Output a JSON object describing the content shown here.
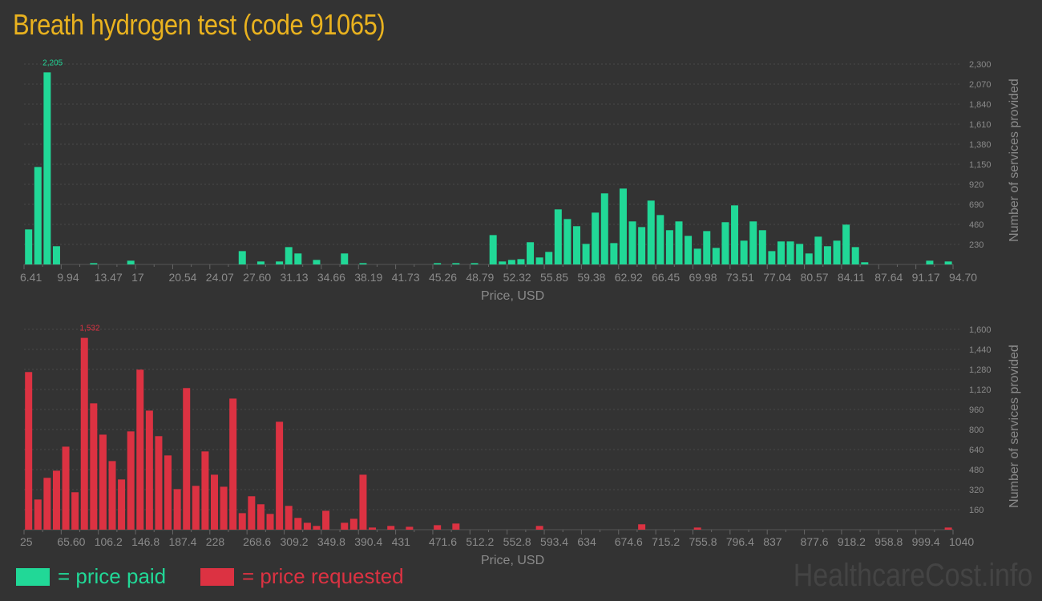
{
  "title": "Breath hydrogen test (code 91065)",
  "legend": {
    "paid_label": "= price paid",
    "requested_label": "= price requested",
    "paid_color": "#21d897",
    "requested_color": "#dc3242"
  },
  "watermark": "HealthcareCost.info",
  "chart_data": [
    {
      "type": "bar",
      "series_name": "price paid",
      "color": "#21d897",
      "xlabel": "Price, USD",
      "ylabel": "Number of services provided",
      "xlim": [
        6.41,
        94.7
      ],
      "ylim": [
        0,
        2300
      ],
      "x_ticks": [
        "6.41",
        "9.94",
        "13.47",
        "17",
        "20.54",
        "24.07",
        "27.60",
        "31.13",
        "34.66",
        "38.19",
        "41.73",
        "45.26",
        "48.79",
        "52.32",
        "55.85",
        "59.38",
        "62.92",
        "66.45",
        "69.98",
        "73.51",
        "77.04",
        "80.57",
        "84.11",
        "87.64",
        "91.17",
        "94.70"
      ],
      "y_ticks": [
        "230",
        "460",
        "690",
        "920",
        "1,150",
        "1,380",
        "1,610",
        "1,840",
        "2,070",
        "2,300"
      ],
      "bins": 100,
      "max_label": "2,205",
      "max_bin": 2,
      "values": {
        "0": 402,
        "1": 1119,
        "2": 2205,
        "3": 209,
        "7": 15,
        "11": 43,
        "23": 153,
        "25": 34,
        "27": 34,
        "28": 199,
        "29": 126,
        "31": 52,
        "34": 126,
        "36": 15,
        "44": 15,
        "46": 15,
        "48": 15,
        "50": 337,
        "51": 34,
        "52": 52,
        "53": 61,
        "54": 255,
        "55": 80,
        "56": 144,
        "57": 632,
        "58": 521,
        "59": 439,
        "60": 236,
        "61": 595,
        "62": 816,
        "63": 245,
        "64": 871,
        "65": 494,
        "66": 429,
        "67": 733,
        "68": 567,
        "69": 393,
        "70": 494,
        "71": 328,
        "72": 181,
        "73": 383,
        "74": 190,
        "75": 485,
        "76": 678,
        "77": 273,
        "78": 494,
        "79": 393,
        "80": 153,
        "81": 264,
        "82": 264,
        "83": 236,
        "84": 126,
        "85": 319,
        "86": 209,
        "87": 273,
        "88": 457,
        "89": 199,
        "90": 25,
        "97": 43,
        "99": 34
      }
    },
    {
      "type": "bar",
      "series_name": "price requested",
      "color": "#dc3242",
      "xlabel": "Price, USD",
      "ylabel": "Number of services provided",
      "xlim": [
        25,
        1040
      ],
      "ylim": [
        0,
        1600
      ],
      "x_ticks": [
        "25",
        "65.60",
        "106.2",
        "146.8",
        "187.4",
        "228",
        "268.6",
        "309.2",
        "349.8",
        "390.4",
        "431",
        "471.6",
        "512.2",
        "552.8",
        "593.4",
        "634",
        "674.6",
        "715.2",
        "755.8",
        "796.4",
        "837",
        "877.6",
        "918.2",
        "958.8",
        "999.4",
        "1040"
      ],
      "y_ticks": [
        "160",
        "320",
        "480",
        "640",
        "800",
        "960",
        "1,120",
        "1,280",
        "1,440",
        "1,600"
      ],
      "bins": 100,
      "max_label": "1,532",
      "max_bin": 6,
      "values": {
        "0": 1259,
        "1": 241,
        "2": 414,
        "3": 471,
        "4": 663,
        "5": 299,
        "6": 1532,
        "7": 1009,
        "8": 759,
        "9": 548,
        "10": 401,
        "11": 785,
        "12": 1278,
        "13": 951,
        "14": 747,
        "15": 593,
        "16": 324,
        "17": 1131,
        "18": 350,
        "19": 625,
        "20": 439,
        "21": 343,
        "22": 1047,
        "23": 132,
        "24": 267,
        "25": 203,
        "26": 126,
        "27": 862,
        "28": 190,
        "29": 94,
        "30": 55,
        "31": 30,
        "32": 151,
        "34": 55,
        "35": 87,
        "36": 439,
        "37": 17,
        "39": 30,
        "41": 23,
        "44": 36,
        "46": 49,
        "55": 30,
        "66": 43,
        "72": 17,
        "99": 17
      }
    }
  ]
}
